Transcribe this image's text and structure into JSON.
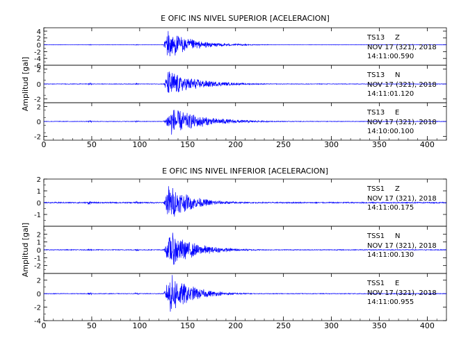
{
  "chart_data": [
    {
      "type": "line",
      "title": "E OFIC INS NIVEL SUPERIOR [ACELERACION]",
      "ylabel": "Amplitud [gal]",
      "xlabel": "",
      "xlim": [
        0,
        420
      ],
      "xticks": [
        0,
        50,
        100,
        150,
        200,
        250,
        300,
        350,
        400
      ],
      "grid": false,
      "color": "#0000ff",
      "traces": [
        {
          "station": "TS13",
          "component": "Z",
          "date": "NOV 17 (321), 2018",
          "time": "14:11:00.590",
          "ylim": [
            -6,
            5
          ],
          "yticks": [
            4,
            2,
            0,
            -2,
            -4,
            -6
          ],
          "onset_s": 125,
          "peak_s": 128,
          "peak_amplitude": 4.8,
          "decay_s": 25,
          "noise": 0.05
        },
        {
          "station": "TS13",
          "component": "N",
          "date": "NOV 17 (321), 2018",
          "time": "14:11:01.120",
          "ylim": [
            -2.5,
            2.5
          ],
          "yticks": [
            2,
            0,
            -2
          ],
          "onset_s": 125,
          "peak_s": 130,
          "peak_amplitude": 2.0,
          "decay_s": 28,
          "noise": 0.04
        },
        {
          "station": "TS13",
          "component": "E",
          "date": "NOV 17 (321), 2018",
          "time": "14:10:00.100",
          "ylim": [
            -2.5,
            2.5
          ],
          "yticks": [
            2,
            0,
            -2
          ],
          "onset_s": 125,
          "peak_s": 133,
          "peak_amplitude": 2.0,
          "decay_s": 32,
          "noise": 0.04
        }
      ]
    },
    {
      "type": "line",
      "title": "E OFIC INS NIVEL INFERIOR [ACELERACION]",
      "ylabel": "Amplitud [gal]",
      "xlabel": "",
      "xlim": [
        0,
        420
      ],
      "xticks": [
        0,
        50,
        100,
        150,
        200,
        250,
        300,
        350,
        400
      ],
      "grid": false,
      "color": "#0000ff",
      "traces": [
        {
          "station": "TSS1",
          "component": "Z",
          "date": "NOV 17 (321), 2018",
          "time": "14:11:00.175",
          "ylim": [
            -2,
            2
          ],
          "yticks": [
            2,
            1,
            0,
            -1
          ],
          "onset_s": 125,
          "peak_s": 130,
          "peak_amplitude": 1.6,
          "decay_s": 24,
          "noise": 0.05
        },
        {
          "station": "TSS1",
          "component": "N",
          "date": "NOV 17 (321), 2018",
          "time": "14:11:00.130",
          "ylim": [
            -3,
            3
          ],
          "yticks": [
            2,
            1,
            0,
            -1,
            -2
          ],
          "onset_s": 125,
          "peak_s": 132,
          "peak_amplitude": 2.4,
          "decay_s": 26,
          "noise": 0.05
        },
        {
          "station": "TSS1",
          "component": "E",
          "date": "NOV 17 (321), 2018",
          "time": "14:11:00.955",
          "ylim": [
            -4,
            3
          ],
          "yticks": [
            2,
            0,
            -2,
            -4
          ],
          "onset_s": 125,
          "peak_s": 132,
          "peak_amplitude": 3.2,
          "decay_s": 22,
          "noise": 0.05
        }
      ]
    }
  ]
}
